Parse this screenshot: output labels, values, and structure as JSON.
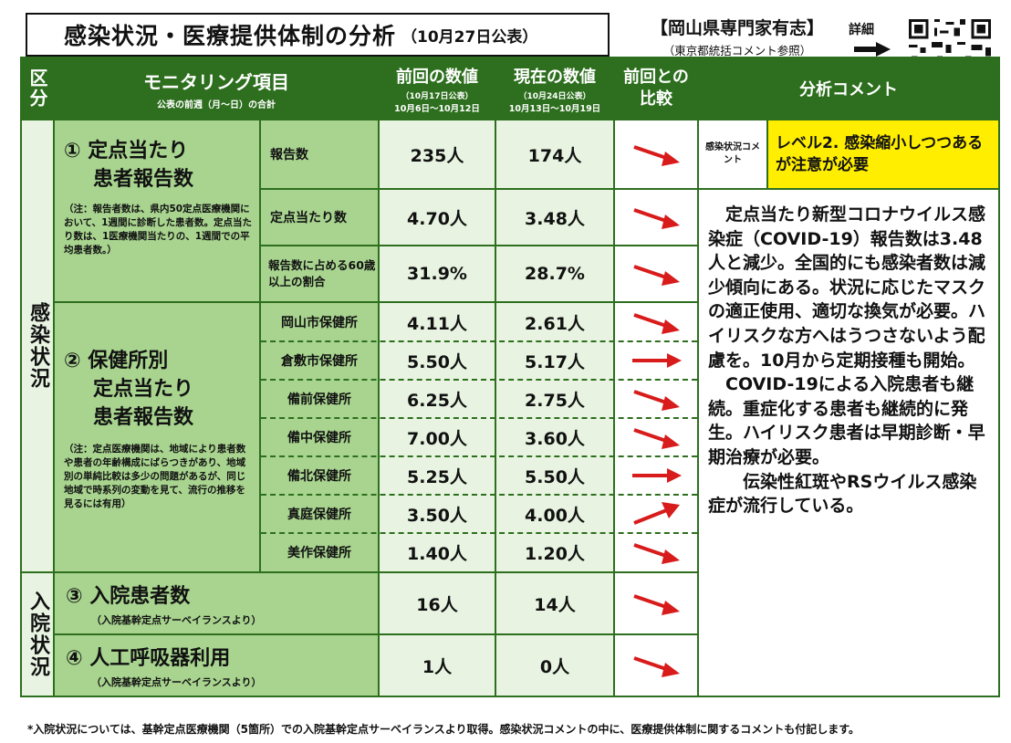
{
  "title": {
    "main": "感染状況・医療提供体制の分析",
    "date": "（10月27日公表）"
  },
  "expert": {
    "name": "【岡山県専門家有志】",
    "sub": "（東京都統括コメント参照）"
  },
  "detail_label": "詳細",
  "header": {
    "category": "区分",
    "item": "モニタリング項目",
    "item_sub": "公表の前週（月～日）の合計",
    "prev": "前回の数値",
    "prev_sub1": "（10月17日公表）",
    "prev_sub2": "10月6日～10月12日",
    "curr": "現在の数値",
    "curr_sub1": "（10月24日公表）",
    "curr_sub2": "10月13日～10月19日",
    "compare": "前回との比較",
    "comment": "分析コメント"
  },
  "sections": {
    "infection": "感染状況",
    "hospital": "入院状況"
  },
  "item1": {
    "title_line1": "① 定点当たり",
    "title_line2": "患者報告数",
    "note": "（注：報告者数は、県内50定点医療機関において、1週間に診断した患者数。定点当たり数は、1医療機関当たりの、1週間での平均患者数。）",
    "rows": [
      {
        "label": "報告数",
        "prev": "235人",
        "curr": "174人",
        "trend": "down"
      },
      {
        "label": "定点当たり数",
        "prev": "4.70人",
        "curr": "3.48人",
        "trend": "down"
      },
      {
        "label": "報告数に占める60歳以上の割合",
        "prev": "31.9%",
        "curr": "28.7%",
        "trend": "down"
      }
    ]
  },
  "item2": {
    "title_line1": "② 保健所別",
    "title_line2": "定点当たり",
    "title_line3": "患者報告数",
    "note": "（注：定点医療機関は、地域により患者数や患者の年齢構成にばらつきがあり、地域別の単純比較は多少の問題があるが、同じ地域で時系列の変動を見て、流行の推移を見るには有用）",
    "rows": [
      {
        "label": "岡山市保健所",
        "prev": "4.11人",
        "curr": "2.61人",
        "trend": "down"
      },
      {
        "label": "倉敷市保健所",
        "prev": "5.50人",
        "curr": "5.17人",
        "trend": "flat"
      },
      {
        "label": "備前保健所",
        "prev": "6.25人",
        "curr": "2.75人",
        "trend": "down"
      },
      {
        "label": "備中保健所",
        "prev": "7.00人",
        "curr": "3.60人",
        "trend": "down"
      },
      {
        "label": "備北保健所",
        "prev": "5.25人",
        "curr": "5.50人",
        "trend": "flat"
      },
      {
        "label": "真庭保健所",
        "prev": "3.50人",
        "curr": "4.00人",
        "trend": "up"
      },
      {
        "label": "美作保健所",
        "prev": "1.40人",
        "curr": "1.20人",
        "trend": "down"
      }
    ]
  },
  "item3": {
    "title": "③ 入院患者数",
    "note": "（入院基幹定点サーベイランスより）",
    "prev": "16人",
    "curr": "14人",
    "trend": "down"
  },
  "item4": {
    "title": "④ 人工呼吸器利用",
    "note": "（入院基幹定点サーベイランスより）",
    "prev": "1人",
    "curr": "0人",
    "trend": "down"
  },
  "comment": {
    "tag": "感染状況コメント",
    "level": "レベル2. 感染縮小しつつあるが注意が必要",
    "p1": "　定点当たり新型コロナウイルス感染症（COVID-19）報告数は3.48人と減少。全国的にも感染者数は減少傾向にある。状況に応じたマスクの適正使用、適切な換気が必要。ハイリスクな方へはうつさないよう配慮を。10月から定期接種も開始。",
    "p2": "　COVID-19による入院患者も継続。重症化する患者も継続的に発生。ハイリスク患者は早期診断・早期治療が必要。",
    "p3": "　　伝染性紅斑やRSウイルス感染症が流行している。"
  },
  "footer": "*入院状況については、基幹定点医療機関（5箇所）での入院基幹定点サーベイランスより取得。感染状況コメントの中に、医療提供体制に関するコメントも付記します。",
  "colors": {
    "dark_green": "#2d6f1e",
    "mid_green": "#a8d48f",
    "light_green": "#e8f4e1",
    "yellow": "#ffee00",
    "arrow_red": "#d81b1b"
  }
}
